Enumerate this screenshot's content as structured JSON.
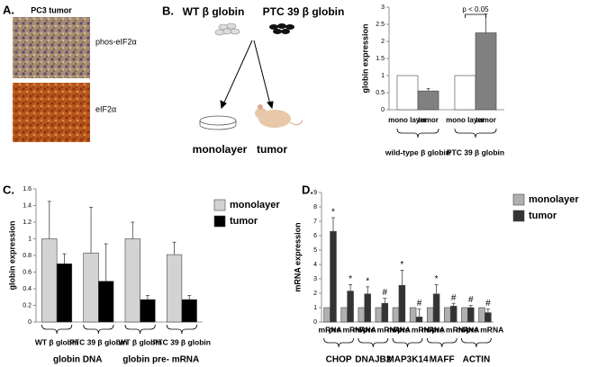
{
  "panel_labels": [
    "A.",
    "B.",
    "C.",
    "D."
  ],
  "panel_a": {
    "title": "PC3 tumor",
    "labels": [
      "phos-eIF2α",
      "eIF2α"
    ]
  },
  "panel_b_diagram": {
    "labels": [
      "WT β globin",
      "PTC 39 β globin",
      "monolayer",
      "tumor"
    ]
  },
  "chart_data": [
    {
      "type": "bar",
      "ylabel": "globin expression",
      "categories": [
        "wild-type β globin",
        "PTC 39 β globin"
      ],
      "series": [
        {
          "name": "mono layer",
          "color": "#ffffff",
          "values": [
            1,
            1
          ]
        },
        {
          "name": "tumor",
          "color": "#808080",
          "values": [
            0.55,
            2.25
          ],
          "errors": [
            0.07,
            0.55
          ]
        }
      ],
      "ylim": [
        0,
        3
      ],
      "yticks": [
        0,
        0.5,
        1,
        1.5,
        2,
        2.5,
        3
      ],
      "annotation": "p < 0.05"
    },
    {
      "type": "bar",
      "ylabel": "globin expression",
      "categories": [
        "WT β globin",
        "PTC 39 β globin",
        "WT β globin",
        "PTC 39 β globin"
      ],
      "groups": [
        "globin DNA",
        "globin pre- mRNA"
      ],
      "series": [
        {
          "name": "monolayer",
          "color": "#d3d3d3",
          "values": [
            1,
            0.83,
            1,
            0.81
          ],
          "errors": [
            0.45,
            0.55,
            0.2,
            0.15
          ]
        },
        {
          "name": "tumor",
          "color": "#000000",
          "values": [
            0.7,
            0.49,
            0.27,
            0.27
          ],
          "errors": [
            0.12,
            0.45,
            0.05,
            0.05
          ]
        }
      ],
      "ylim": [
        0,
        1.6
      ],
      "yticks": [
        0,
        0.2,
        0.4,
        0.6,
        0.8,
        1,
        1.2,
        1.4,
        1.6
      ],
      "legend": "right"
    },
    {
      "type": "bar",
      "ylabel": "mRNA expression",
      "categories": [
        "mRNA",
        "pre mRNA",
        "mRNA",
        "pre mRNA",
        "mRNA",
        "pre mRNA",
        "mRNA",
        "pre mRNA",
        "mRNA",
        "pre mRNA"
      ],
      "groups": [
        "CHOP",
        "DNAJB2",
        "MAP3K14",
        "MAFF",
        "ACTIN"
      ],
      "series": [
        {
          "name": "monolayer",
          "color": "#b0b0b0",
          "values": [
            1,
            1,
            1,
            1,
            1,
            1,
            1,
            1,
            1,
            1
          ]
        },
        {
          "name": "tumor",
          "color": "#333333",
          "values": [
            6.3,
            2.15,
            1.95,
            1.3,
            2.55,
            0.35,
            1.95,
            1.1,
            1.0,
            0.65
          ],
          "errors": [
            0.95,
            0.45,
            0.5,
            0.35,
            1.05,
            0.55,
            0.65,
            0.2,
            0.15,
            0.25
          ],
          "markers": [
            "*",
            "*",
            "*",
            "#",
            "*",
            "#",
            "*",
            "#",
            "#",
            "#"
          ]
        }
      ],
      "ylim": [
        0,
        9
      ],
      "yticks": [
        0,
        1,
        2,
        3,
        4,
        5,
        6,
        7,
        8,
        9
      ],
      "legend": "right"
    }
  ]
}
